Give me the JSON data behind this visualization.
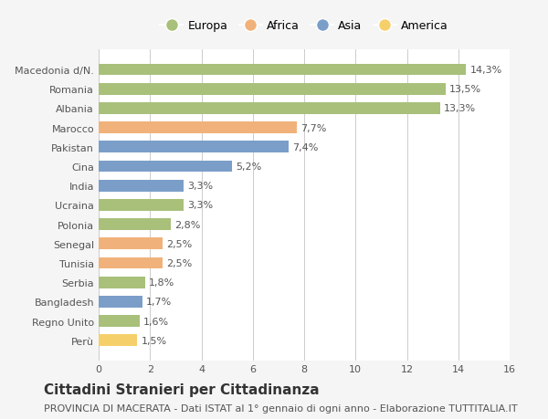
{
  "categories": [
    "Macedonia d/N.",
    "Romania",
    "Albania",
    "Marocco",
    "Pakistan",
    "Cina",
    "India",
    "Ucraina",
    "Polonia",
    "Senegal",
    "Tunisia",
    "Serbia",
    "Bangladesh",
    "Regno Unito",
    "Perù"
  ],
  "values": [
    14.3,
    13.5,
    13.3,
    7.7,
    7.4,
    5.2,
    3.3,
    3.3,
    2.8,
    2.5,
    2.5,
    1.8,
    1.7,
    1.6,
    1.5
  ],
  "labels": [
    "14,3%",
    "13,5%",
    "13,3%",
    "7,7%",
    "7,4%",
    "5,2%",
    "3,3%",
    "3,3%",
    "2,8%",
    "2,5%",
    "2,5%",
    "1,8%",
    "1,7%",
    "1,6%",
    "1,5%"
  ],
  "continents": [
    "Europa",
    "Europa",
    "Europa",
    "Africa",
    "Asia",
    "Asia",
    "Asia",
    "Europa",
    "Europa",
    "Africa",
    "Africa",
    "Europa",
    "Asia",
    "Europa",
    "America"
  ],
  "colors": {
    "Europa": "#a8c07a",
    "Africa": "#f0b27a",
    "Asia": "#7b9ec9",
    "America": "#f5d06a"
  },
  "legend_order": [
    "Europa",
    "Africa",
    "Asia",
    "America"
  ],
  "xlim": [
    0,
    16
  ],
  "xticks": [
    0,
    2,
    4,
    6,
    8,
    10,
    12,
    14,
    16
  ],
  "title": "Cittadini Stranieri per Cittadinanza",
  "subtitle": "PROVINCIA DI MACERATA - Dati ISTAT al 1° gennaio di ogni anno - Elaborazione TUTTITALIA.IT",
  "bg_color": "#f5f5f5",
  "plot_bg_color": "#ffffff",
  "grid_color": "#cccccc",
  "title_fontsize": 11,
  "subtitle_fontsize": 8,
  "label_fontsize": 8,
  "tick_fontsize": 8,
  "legend_fontsize": 9
}
